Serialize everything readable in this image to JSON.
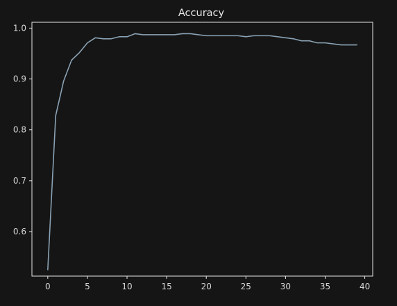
{
  "chart_data": {
    "type": "line",
    "title": "Accuracy",
    "xlabel": "",
    "ylabel": "",
    "xlim": [
      -2,
      41
    ],
    "ylim": [
      0.5125,
      1.0115
    ],
    "xticks": [
      0,
      5,
      10,
      15,
      20,
      25,
      30,
      35,
      40
    ],
    "yticks": [
      0.6,
      0.7,
      0.8,
      0.9,
      1.0
    ],
    "ytick_labels": [
      "0.6",
      "0.7",
      "0.8",
      "0.9",
      "1.0"
    ],
    "grid": false,
    "colors": {
      "background": "#151515",
      "axes": "#e8e8e8",
      "line": "#8aa2b4"
    },
    "series": [
      {
        "x": [
          0,
          1,
          2,
          3,
          4,
          5,
          6,
          7,
          8,
          9,
          10,
          11,
          12,
          13,
          14,
          15,
          16,
          17,
          18,
          19,
          20,
          21,
          22,
          23,
          24,
          25,
          26,
          27,
          28,
          29,
          30,
          31,
          32,
          33,
          34,
          35,
          36,
          37,
          38,
          39
        ],
        "values": [
          0.525,
          0.828,
          0.896,
          0.937,
          0.952,
          0.971,
          0.981,
          0.979,
          0.979,
          0.983,
          0.983,
          0.989,
          0.987,
          0.987,
          0.987,
          0.987,
          0.987,
          0.989,
          0.989,
          0.987,
          0.985,
          0.985,
          0.985,
          0.985,
          0.985,
          0.983,
          0.985,
          0.985,
          0.985,
          0.983,
          0.981,
          0.979,
          0.975,
          0.975,
          0.971,
          0.971,
          0.969,
          0.967,
          0.967,
          0.967
        ]
      }
    ]
  }
}
